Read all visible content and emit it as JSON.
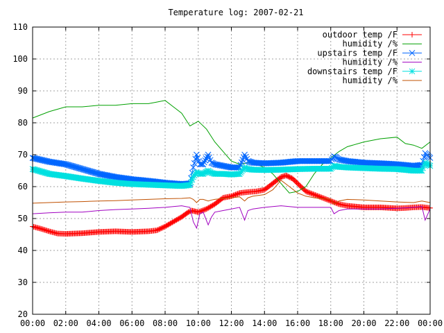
{
  "chart_data": {
    "type": "line",
    "title": "Temperature log: 2007-02-21",
    "xlabel": "",
    "ylabel": "",
    "x_unit": "time of day (hours)",
    "xlim": [
      0,
      24
    ],
    "ylim": [
      20,
      110
    ],
    "x_ticks": [
      0,
      2,
      4,
      6,
      8,
      10,
      12,
      14,
      16,
      18,
      20,
      22,
      24
    ],
    "x_tick_labels": [
      "00:00",
      "02:00",
      "04:00",
      "06:00",
      "08:00",
      "10:00",
      "12:00",
      "14:00",
      "16:00",
      "18:00",
      "20:00",
      "22:00",
      "00:00"
    ],
    "y_ticks": [
      20,
      30,
      40,
      50,
      60,
      70,
      80,
      90,
      100,
      110
    ],
    "grid": true,
    "legend_position": "top-right",
    "series": [
      {
        "name": "outdoor temp /F",
        "color": "#ff0000",
        "marker": "plus",
        "x": [
          0,
          0.5,
          1,
          1.5,
          2,
          3,
          4,
          5,
          6,
          7,
          7.5,
          8,
          8.5,
          9,
          9.4,
          9.6,
          10,
          10.5,
          11,
          11.5,
          12,
          12.5,
          13,
          13.5,
          14,
          14.5,
          15,
          15.3,
          15.7,
          16,
          16.5,
          17,
          17.5,
          18,
          18.5,
          19,
          20,
          21,
          22,
          22.5,
          23,
          23.5,
          24
        ],
        "y": [
          47.5,
          46.8,
          46,
          45.3,
          45.2,
          45.4,
          45.8,
          46,
          45.8,
          46,
          46.3,
          47.5,
          49,
          50.5,
          52,
          52.5,
          52,
          53,
          54.5,
          56.5,
          57,
          58,
          58.3,
          58.5,
          59,
          61,
          63,
          63.5,
          62.5,
          61,
          58.5,
          57.5,
          56.5,
          55.5,
          54.5,
          54,
          53.5,
          53.5,
          53.2,
          53.3,
          53.5,
          53.6,
          53.3
        ]
      },
      {
        "name": "humidity /%",
        "color": "#00a000",
        "marker": "none",
        "x": [
          0,
          1,
          2,
          3,
          4,
          5,
          6,
          7,
          7.5,
          8,
          8.5,
          9,
          9.5,
          10,
          10.5,
          11,
          11.5,
          12,
          12.5,
          13,
          13.5,
          14,
          14.5,
          15,
          15.5,
          16,
          16.5,
          17,
          17.5,
          18,
          18.5,
          19,
          20,
          21,
          22,
          22.5,
          23,
          23.5,
          24
        ],
        "y": [
          81.5,
          83.5,
          85,
          85,
          85.5,
          85.5,
          86,
          86,
          86.5,
          87,
          85,
          83,
          79,
          80.5,
          78,
          74,
          71,
          68,
          67,
          67.5,
          67,
          66,
          64,
          61,
          58,
          58.5,
          60,
          64,
          67,
          69,
          71,
          72.5,
          74,
          75,
          75.5,
          73.5,
          73,
          72,
          74
        ]
      },
      {
        "name": "upstairs temp /F",
        "color": "#0066ff",
        "marker": "cross",
        "x": [
          0,
          1,
          2,
          3,
          4,
          5,
          6,
          7,
          8,
          9,
          9.5,
          9.7,
          9.9,
          10.1,
          10.3,
          10.6,
          10.8,
          11,
          11.5,
          12,
          12.5,
          12.8,
          13,
          13.3,
          14,
          15,
          16,
          17,
          18,
          18.2,
          18.5,
          19,
          20,
          21,
          22,
          23,
          23.5,
          23.7,
          24
        ],
        "y": [
          69,
          67.8,
          67,
          65.5,
          64,
          63,
          62.3,
          61.8,
          61.2,
          60.8,
          61,
          66,
          70,
          67,
          67,
          70,
          67.5,
          67,
          66.5,
          66,
          66,
          70,
          68,
          67.5,
          67.3,
          67.5,
          68,
          68,
          68,
          69.5,
          68.5,
          68,
          67.5,
          67.3,
          67,
          66.5,
          66.8,
          70.5,
          69
        ]
      },
      {
        "name": "humidity /%",
        "color": "#a000c0",
        "marker": "none",
        "x": [
          0,
          1,
          2,
          3,
          4,
          5,
          6,
          7,
          8,
          9,
          9.5,
          9.7,
          9.9,
          10.1,
          10.3,
          10.6,
          10.8,
          11,
          11.5,
          12,
          12.5,
          12.8,
          13,
          13.3,
          14,
          15,
          16,
          17,
          18,
          18.2,
          18.5,
          19,
          20,
          21,
          22,
          23,
          23.5,
          23.7,
          24
        ],
        "y": [
          51.5,
          51.8,
          52,
          52,
          52.5,
          52.8,
          53,
          53.2,
          53.5,
          54,
          53.5,
          49,
          47,
          51.5,
          52,
          48,
          50.5,
          52,
          52.5,
          53,
          53.5,
          49.5,
          52.5,
          53,
          53.5,
          54,
          53.5,
          53.5,
          53.5,
          51.5,
          52.5,
          53,
          53,
          53,
          53.2,
          53.5,
          53.8,
          49.5,
          53
        ]
      },
      {
        "name": "downstairs temp /F",
        "color": "#00e0e0",
        "marker": "star",
        "x": [
          0,
          1,
          2,
          3,
          4,
          5,
          6,
          7,
          8,
          9,
          9.5,
          9.7,
          9.9,
          10.1,
          10.3,
          10.6,
          10.8,
          11,
          11.5,
          12,
          12.5,
          12.8,
          13,
          13.3,
          14,
          15,
          16,
          17,
          18,
          18.2,
          18.5,
          19,
          20,
          21,
          22,
          23,
          23.5,
          23.7,
          24
        ],
        "y": [
          65.5,
          64,
          63.3,
          62.5,
          61.8,
          61.2,
          60.8,
          60.6,
          60.4,
          60.2,
          60.5,
          63,
          64.5,
          64,
          64,
          65,
          64.3,
          64,
          64,
          63.8,
          64,
          66,
          65.5,
          65.3,
          65.2,
          65.3,
          65.5,
          65.6,
          65.6,
          66.5,
          66.2,
          66,
          65.8,
          65.6,
          65.5,
          65,
          65,
          67.5,
          66.5
        ]
      },
      {
        "name": "humidity /%",
        "color": "#c05000",
        "marker": "none",
        "x": [
          0,
          1,
          2,
          3,
          4,
          5,
          6,
          7,
          8,
          9,
          9.5,
          9.7,
          9.9,
          10.1,
          10.3,
          10.6,
          10.8,
          11,
          11.5,
          12,
          12.5,
          12.8,
          13,
          13.3,
          14,
          14.5,
          15,
          15.5,
          16,
          16.5,
          17,
          18,
          18.2,
          18.5,
          19,
          20,
          21,
          22,
          23,
          23.5,
          24
        ],
        "y": [
          54.8,
          55,
          55.2,
          55.3,
          55.5,
          55.6,
          55.8,
          56,
          56.2,
          56.3,
          56.5,
          56,
          55,
          56,
          56,
          55.5,
          55.8,
          56,
          56.3,
          56.5,
          56.8,
          55.5,
          56.5,
          57,
          57.5,
          59,
          62,
          60,
          58,
          57,
          56.5,
          56,
          54.5,
          55.5,
          56,
          55.8,
          55.5,
          55.2,
          55,
          55.5,
          55
        ]
      }
    ]
  }
}
